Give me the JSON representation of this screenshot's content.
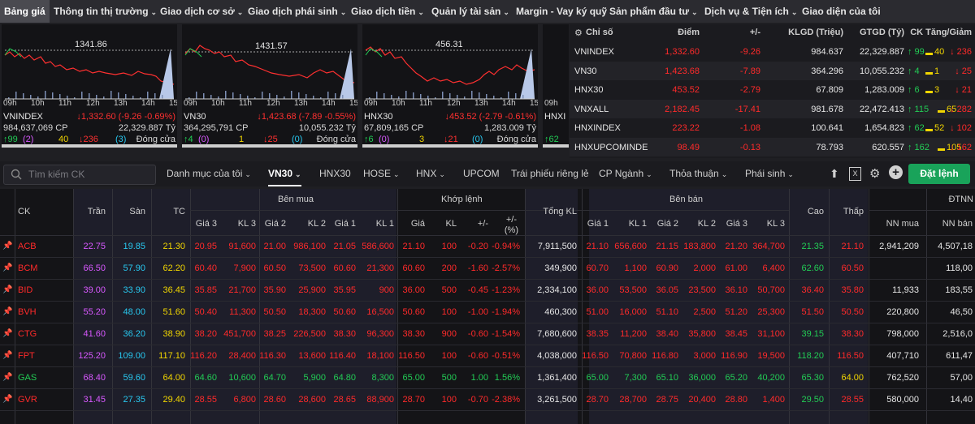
{
  "nav": [
    {
      "label": "Bảng giá",
      "active": true,
      "caret": false
    },
    {
      "label": "Thông tin thị trường",
      "caret": true
    },
    {
      "label": "Giao dịch cơ sở",
      "caret": true
    },
    {
      "label": "Giao dịch phái sinh",
      "caret": true
    },
    {
      "label": "Giao dịch tiền",
      "caret": true
    },
    {
      "label": "Quản lý tài sản",
      "caret": true
    },
    {
      "label": "Margin - Vay ký quỹ",
      "caret": false
    },
    {
      "label": "Sản phẩm đầu tư",
      "caret": true
    },
    {
      "label": "Dịch vụ & Tiện ích",
      "caret": true
    },
    {
      "label": "Giao diện của tôi",
      "caret": false
    }
  ],
  "charts": [
    {
      "ref": "1341.86",
      "name": "VNINDEX",
      "change": "↓1,332.60 (-9.26 -0.69%)",
      "volume": "984,637,069 CP",
      "value": "22,329.887 Tỷ",
      "up": "↑99",
      "upc": "(2)",
      "ref_count": "40",
      "down": "↓236",
      "downc": "(3)",
      "status": "Đóng cửa",
      "times": [
        "09h",
        "10h",
        "11h",
        "12h",
        "13h",
        "14h",
        "15h"
      ]
    },
    {
      "ref": "1431.57",
      "name": "VN30",
      "change": "↓1,423.68 (-7.89 -0.55%)",
      "volume": "364,295,791 CP",
      "value": "10,055.232 Tỷ",
      "up": "↑4",
      "upc": "(0)",
      "ref_count": "1",
      "down": "↓25",
      "downc": "(0)",
      "status": "Đóng cửa",
      "times": [
        "09h",
        "10h",
        "11h",
        "12h",
        "13h",
        "14h",
        "15h"
      ]
    },
    {
      "ref": "456.31",
      "name": "HNX30",
      "change": "↓453.52 (-2.79 -0.61%)",
      "volume": "67,809,165 CP",
      "value": "1,283.009 Tỷ",
      "up": "↑6",
      "upc": "(0)",
      "ref_count": "3",
      "down": "↓21",
      "downc": "(0)",
      "status": "Đóng cửa",
      "times": [
        "09h",
        "10h",
        "11h",
        "12h",
        "13h",
        "14h",
        "15h"
      ]
    },
    {
      "name": "HNXI",
      "times": [
        "09h"
      ],
      "up": "↑62"
    }
  ],
  "index_table": {
    "headers": [
      "Chỉ số",
      "Điểm",
      "+/-",
      "KLGD (Triệu)",
      "GTGD (Tỷ)",
      "CK Tăng/Giảm"
    ],
    "rows": [
      {
        "name": "VNINDEX",
        "point": "1,332.60",
        "chg": "-9.26",
        "vol": "984.637",
        "val": "22,329.887",
        "up": "↑ 99",
        "ref": "40",
        "down": "↓ 236"
      },
      {
        "name": "VN30",
        "point": "1,423.68",
        "chg": "-7.89",
        "vol": "364.296",
        "val": "10,055.232",
        "up": "↑ 4",
        "ref": "1",
        "down": "↓ 25"
      },
      {
        "name": "HNX30",
        "point": "453.52",
        "chg": "-2.79",
        "vol": "67.809",
        "val": "1,283.009",
        "up": "↑ 6",
        "ref": "3",
        "down": "↓ 21"
      },
      {
        "name": "VNXALL",
        "point": "2,182.45",
        "chg": "-17.41",
        "vol": "981.678",
        "val": "22,472.413",
        "up": "↑ 115",
        "ref": "65",
        "down": "↓ 282"
      },
      {
        "name": "HNXINDEX",
        "point": "223.22",
        "chg": "-1.08",
        "vol": "100.641",
        "val": "1,654.823",
        "up": "↑ 62",
        "ref": "52",
        "down": "↓ 102"
      },
      {
        "name": "HNXUPCOMINDE",
        "point": "98.49",
        "chg": "-0.13",
        "vol": "78.793",
        "val": "620.557",
        "up": "↑ 162",
        "ref": "105",
        "down": "↓ 162"
      }
    ]
  },
  "toolbar": {
    "search_placeholder": "Tìm kiếm CK",
    "tabs": [
      {
        "label": "Danh mục của tôi",
        "caret": true
      },
      {
        "label": "VN30",
        "caret": true,
        "active": true
      },
      {
        "label": "HNX30",
        "caret": false
      },
      {
        "label": "HOSE",
        "caret": true
      },
      {
        "label": "HNX",
        "caret": true
      },
      {
        "label": "UPCOM",
        "caret": false
      },
      {
        "label": "Trái phiếu riêng lẻ",
        "caret": false
      },
      {
        "label": "CP Ngành",
        "caret": true
      },
      {
        "label": "Thỏa thuận",
        "caret": true
      },
      {
        "label": "Phái sinh",
        "caret": true
      }
    ],
    "order_button": "Đặt lệnh"
  },
  "board": {
    "group_headers": {
      "buy": "Bên mua",
      "match": "Khớp lệnh",
      "sell": "Bên bán",
      "foreign": "ĐTNN"
    },
    "headers": {
      "ck": "CK",
      "tran": "Trần",
      "san": "Sàn",
      "tc": "TC",
      "g3": "Giá 3",
      "kl3": "KL 3",
      "g2": "Giá 2",
      "kl2": "KL 2",
      "g1": "Giá 1",
      "kl1": "KL 1",
      "mgia": "Giá",
      "mkl": "KL",
      "mchg": "+/-",
      "mpct": "+/-",
      "mpct2": "(%)",
      "tongkl": "Tổng KL",
      "sg1": "Giá 1",
      "skl1": "KL 1",
      "sg2": "Giá 2",
      "skl2": "KL 2",
      "sg3": "Giá 3",
      "skl3": "KL 3",
      "cao": "Cao",
      "thap": "Thấp",
      "nnmua": "NN mua",
      "nnban": "NN bán"
    },
    "rows": [
      {
        "ck": "ACB",
        "c": "red",
        "tran": "22.75",
        "san": "19.85",
        "tc": "21.30",
        "b3": "20.95",
        "bk3": "91,600",
        "b2": "21.00",
        "bk2": "986,100",
        "b1": "21.05",
        "bk1": "586,600",
        "m": "21.10",
        "mk": "100",
        "mc": "-0.20",
        "mp": "-0.94%",
        "tot": "7,911,500",
        "s1": "21.10",
        "sk1": "656,600",
        "s2": "21.15",
        "sk2": "183,800",
        "s3": "21.20",
        "sk3": "364,700",
        "hi": "21.35",
        "hic": "green",
        "lo": "21.10",
        "loc": "red",
        "nnm": "2,941,209",
        "nnb": "4,507,18"
      },
      {
        "ck": "BCM",
        "c": "red",
        "tran": "66.50",
        "san": "57.90",
        "tc": "62.20",
        "b3": "60.40",
        "bk3": "7,900",
        "b2": "60.50",
        "bk2": "73,500",
        "b1": "60.60",
        "bk1": "21,300",
        "m": "60.60",
        "mk": "200",
        "mc": "-1.60",
        "mp": "-2.57%",
        "tot": "349,900",
        "s1": "60.70",
        "sk1": "1,100",
        "s2": "60.90",
        "sk2": "2,000",
        "s3": "61.00",
        "sk3": "6,400",
        "hi": "62.60",
        "hic": "green",
        "lo": "60.50",
        "loc": "red",
        "nnm": "",
        "nnb": "118,00"
      },
      {
        "ck": "BID",
        "c": "red",
        "tran": "39.00",
        "san": "33.90",
        "tc": "36.45",
        "b3": "35.85",
        "bk3": "21,700",
        "b2": "35.90",
        "bk2": "25,900",
        "b1": "35.95",
        "bk1": "900",
        "m": "36.00",
        "mk": "500",
        "mc": "-0.45",
        "mp": "-1.23%",
        "tot": "2,334,100",
        "s1": "36.00",
        "sk1": "53,500",
        "s2": "36.05",
        "sk2": "23,500",
        "s3": "36.10",
        "sk3": "50,700",
        "hi": "36.40",
        "hic": "red",
        "lo": "35.80",
        "loc": "red",
        "nnm": "11,933",
        "nnb": "183,55"
      },
      {
        "ck": "BVH",
        "c": "red",
        "tran": "55.20",
        "san": "48.00",
        "tc": "51.60",
        "b3": "50.40",
        "bk3": "11,300",
        "b2": "50.50",
        "bk2": "18,300",
        "b1": "50.60",
        "bk1": "16,500",
        "m": "50.60",
        "mk": "100",
        "mc": "-1.00",
        "mp": "-1.94%",
        "tot": "460,300",
        "s1": "51.00",
        "sk1": "16,000",
        "s2": "51.10",
        "sk2": "2,500",
        "s3": "51.20",
        "sk3": "25,300",
        "hi": "51.50",
        "hic": "red",
        "lo": "50.50",
        "loc": "red",
        "nnm": "220,800",
        "nnb": "46,50"
      },
      {
        "ck": "CTG",
        "c": "red",
        "tran": "41.60",
        "san": "36.20",
        "tc": "38.90",
        "b3": "38.20",
        "bk3": "451,700",
        "b2": "38.25",
        "bk2": "226,500",
        "b1": "38.30",
        "bk1": "96,300",
        "m": "38.30",
        "mk": "900",
        "mc": "-0.60",
        "mp": "-1.54%",
        "tot": "7,680,600",
        "s1": "38.35",
        "sk1": "11,200",
        "s2": "38.40",
        "sk2": "35,800",
        "s3": "38.45",
        "sk3": "31,100",
        "hi": "39.15",
        "hic": "green",
        "lo": "38.30",
        "loc": "red",
        "nnm": "798,000",
        "nnb": "2,516,0"
      },
      {
        "ck": "FPT",
        "c": "red",
        "tran": "125.20",
        "san": "109.00",
        "tc": "117.10",
        "b3": "116.20",
        "bk3": "28,400",
        "b2": "116.30",
        "bk2": "13,600",
        "b1": "116.40",
        "bk1": "18,100",
        "m": "116.50",
        "mk": "100",
        "mc": "-0.60",
        "mp": "-0.51%",
        "tot": "4,038,000",
        "s1": "116.50",
        "sk1": "70,800",
        "s2": "116.80",
        "sk2": "3,000",
        "s3": "116.90",
        "sk3": "19,500",
        "hi": "118.20",
        "hic": "green",
        "lo": "116.50",
        "loc": "red",
        "nnm": "407,710",
        "nnb": "611,47"
      },
      {
        "ck": "GAS",
        "c": "green",
        "tran": "68.40",
        "san": "59.60",
        "tc": "64.00",
        "b3": "64.60",
        "bk3": "10,600",
        "b2": "64.70",
        "bk2": "5,900",
        "b1": "64.80",
        "bk1": "8,300",
        "m": "65.00",
        "mk": "500",
        "mc": "1.00",
        "mp": "1.56%",
        "tot": "1,361,400",
        "s1": "65.00",
        "sk1": "7,300",
        "s2": "65.10",
        "sk2": "36,000",
        "s3": "65.20",
        "sk3": "40,200",
        "hi": "65.30",
        "hic": "green",
        "lo": "64.00",
        "loc": "yel",
        "nnm": "762,520",
        "nnb": "57,00"
      },
      {
        "ck": "GVR",
        "c": "red",
        "tran": "31.45",
        "san": "27.35",
        "tc": "29.40",
        "b3": "28.55",
        "bk3": "6,800",
        "b2": "28.60",
        "bk2": "28,600",
        "b1": "28.65",
        "bk1": "88,900",
        "m": "28.70",
        "mk": "100",
        "mc": "-0.70",
        "mp": "-2.38%",
        "tot": "3,261,500",
        "s1": "28.70",
        "sk1": "28,700",
        "s2": "28.75",
        "sk2": "20,400",
        "s3": "28.80",
        "sk3": "1,400",
        "hi": "29.50",
        "hic": "green",
        "lo": "28.55",
        "loc": "red",
        "nnm": "580,000",
        "nnb": "14,40"
      }
    ]
  },
  "colors": {
    "up": "#22cc55",
    "down": "#ff2a2a",
    "ref": "#f2d600",
    "ceil": "#d858ff",
    "floor": "#28c8f0",
    "accent": "#19a35a"
  }
}
